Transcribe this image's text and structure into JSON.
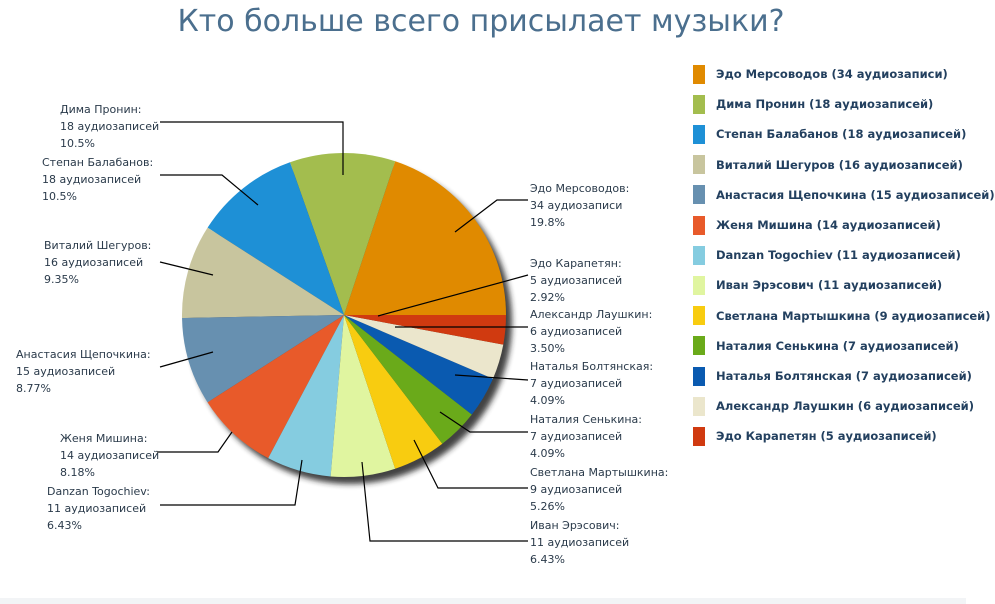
{
  "chart_data": {
    "type": "pie",
    "title": "Кто больше всего присылает музыки?",
    "unit_label": "аудиозаписей",
    "legend_position": "right",
    "slices": [
      {
        "name": "Эдо Мерсоводов",
        "value": 34,
        "count_label": "34 аудиозаписи",
        "percent": "19.8%",
        "legend": "Эдо Мерсоводов (34 аудиозаписи)",
        "color": "#e08a00"
      },
      {
        "name": "Дима Пронин",
        "value": 18,
        "count_label": "18 аудиозаписей",
        "percent": "10.5%",
        "legend": "Дима Пронин (18 аудиозаписей)",
        "color": "#a3bd4e"
      },
      {
        "name": "Степан Балабанов",
        "value": 18,
        "count_label": "18 аудиозаписей",
        "percent": "10.5%",
        "legend": "Степан Балабанов (18 аудиозаписей)",
        "color": "#1e90d6"
      },
      {
        "name": "Виталий Шегуров",
        "value": 16,
        "count_label": "16 аудиозаписей",
        "percent": "9.35%",
        "legend": "Виталий Шегуров (16 аудиозаписей)",
        "color": "#c8c59e"
      },
      {
        "name": "Анастасия Щепочкина",
        "value": 15,
        "count_label": "15 аудиозаписей",
        "percent": "8.77%",
        "legend": "Анастасия Щепочкина (15 аудиозаписей)",
        "color": "#6790b0"
      },
      {
        "name": "Женя Мишина",
        "value": 14,
        "count_label": "14 аудиозаписей",
        "percent": "8.18%",
        "legend": "Женя Мишина (14 аудиозаписей)",
        "color": "#e85a2a"
      },
      {
        "name": "Danzan Togochiev",
        "value": 11,
        "count_label": "11 аудиозаписей",
        "percent": "6.43%",
        "legend": "Danzan Togochiev (11 аудиозаписей)",
        "color": "#85cce0"
      },
      {
        "name": "Иван Эрэсович",
        "value": 11,
        "count_label": "11 аудиозаписей",
        "percent": "6.43%",
        "legend": "Иван Эрэсович (11 аудиозаписей)",
        "color": "#e0f5a0"
      },
      {
        "name": "Светлана Мартышкина",
        "value": 9,
        "count_label": "9 аудиозаписей",
        "percent": "5.26%",
        "legend": "Светлана Мартышкина (9 аудиозаписей)",
        "color": "#f8cc10"
      },
      {
        "name": "Наталия Сенькина",
        "value": 7,
        "count_label": "7 аудиозаписей",
        "percent": "4.09%",
        "legend": "Наталия Сенькина (7 аудиозаписей)",
        "color": "#6aaa1a"
      },
      {
        "name": "Наталья Болтянская",
        "value": 7,
        "count_label": "7 аудиозаписей",
        "percent": "4.09%",
        "legend": "Наталья Болтянская (7 аудиозаписей)",
        "color": "#0a5ab0"
      },
      {
        "name": "Александр Лаушкин",
        "value": 6,
        "count_label": "6 аудиозаписей",
        "percent": "3.50%",
        "legend": "Александр Лаушкин (6 аудиозаписей)",
        "color": "#ebe6cc"
      },
      {
        "name": "Эдо Карапетян",
        "value": 5,
        "count_label": "5 аудиозаписей",
        "percent": "2.92%",
        "legend": "Эдо Карапетян (5 аудиозаписей)",
        "color": "#d03a10"
      }
    ]
  }
}
